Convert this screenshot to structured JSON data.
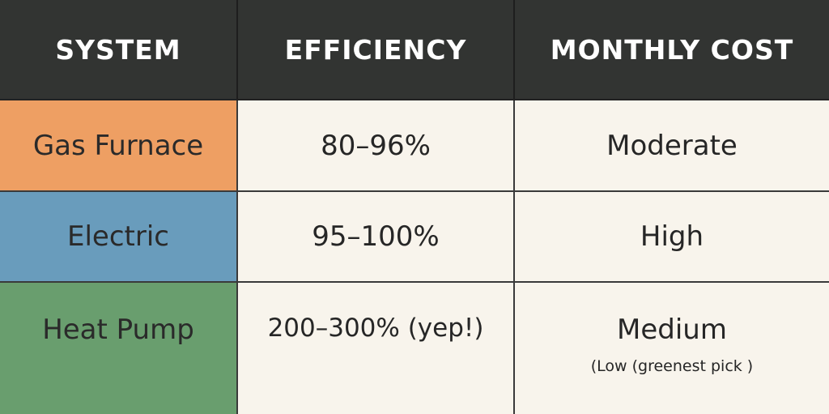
{
  "headers": {
    "system": "SYSTEM",
    "efficiency": "EFFICIENCY",
    "monthly_cost": "MONTHLY COST"
  },
  "rows": [
    {
      "system": "Gas Furnace",
      "efficiency": "80–96%",
      "monthly_cost": "Moderate",
      "color": "#ee9f63"
    },
    {
      "system": "Electric",
      "efficiency": "95–100%",
      "monthly_cost": "High",
      "color": "#699cbc"
    },
    {
      "system": "Heat Pump",
      "efficiency": "200–300% (yep!)",
      "monthly_cost": "Medium",
      "monthly_cost_note": "(Low (greenest pick )",
      "color": "#699e6e"
    }
  ],
  "colors": {
    "header_bg": "#323432",
    "body_bg": "#f8f4ec",
    "grid_line": "#3a3a3a"
  }
}
